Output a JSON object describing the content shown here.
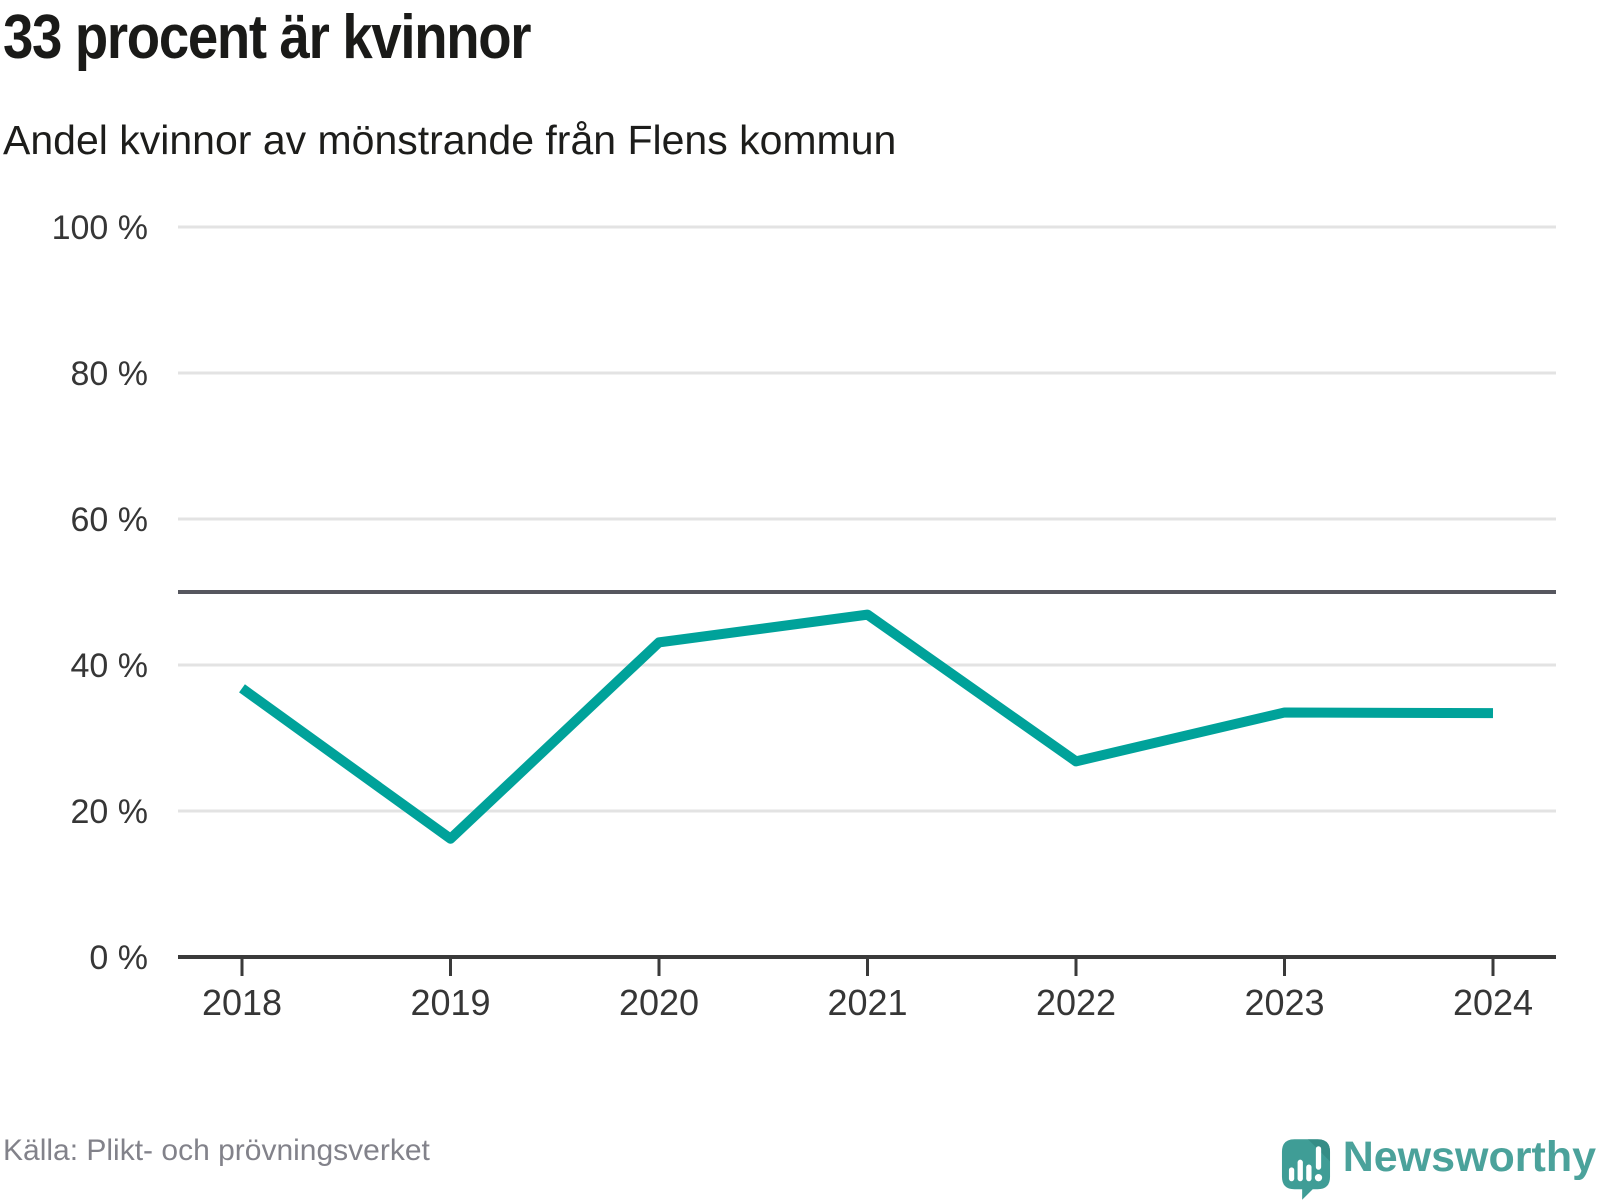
{
  "header": {
    "title": "33 procent är kvinnor",
    "subtitle": "Andel kvinnor av mönstrande från Flens kommun"
  },
  "chart_data": {
    "type": "line",
    "x": [
      "2018",
      "2019",
      "2020",
      "2021",
      "2022",
      "2023",
      "2024"
    ],
    "series": [
      {
        "name": "Andel kvinnor av mönstrande",
        "values": [
          36.8,
          16.2,
          43.1,
          46.9,
          26.8,
          33.5,
          33.4
        ]
      }
    ],
    "title": "33 procent är kvinnor",
    "subtitle": "Andel kvinnor av mönstrande från Flens kommun",
    "xlabel": "",
    "ylabel": "",
    "ylim": [
      0,
      100
    ],
    "yticks": [
      0,
      20,
      40,
      60,
      80,
      100
    ],
    "ytick_suffix": " %",
    "reference_line": 50,
    "grid": "horizontal-only",
    "legend": "none"
  },
  "colors": {
    "line": "#00a29a",
    "reference_line": "#56575f",
    "grid": "#e3e3e3",
    "axis": "#3a3a3a",
    "tick_label": "#363636",
    "title_text": "#1a1a18",
    "subtitle_text": "#1d1d1b",
    "source_text": "#82828a",
    "brand_teal": "#4ba29b",
    "brand_icon": "#3f9d96",
    "brand_icon_fold": "#358d86",
    "brand_icon_marks": "#ffffff"
  },
  "footer": {
    "source": "Källa: Plikt- och prövningsverket",
    "brand_name": "Newsworthy"
  }
}
